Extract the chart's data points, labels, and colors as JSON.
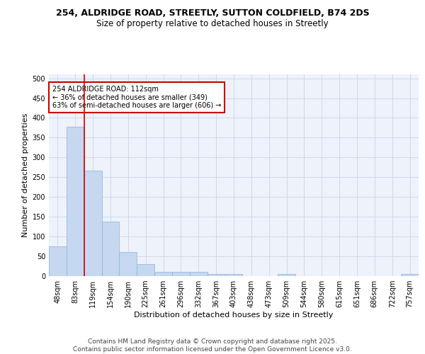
{
  "title_line1": "254, ALDRIDGE ROAD, STREETLY, SUTTON COLDFIELD, B74 2DS",
  "title_line2": "Size of property relative to detached houses in Streetly",
  "xlabel": "Distribution of detached houses by size in Streetly",
  "ylabel": "Number of detached properties",
  "categories": [
    "48sqm",
    "83sqm",
    "119sqm",
    "154sqm",
    "190sqm",
    "225sqm",
    "261sqm",
    "296sqm",
    "332sqm",
    "367sqm",
    "403sqm",
    "438sqm",
    "473sqm",
    "509sqm",
    "544sqm",
    "580sqm",
    "615sqm",
    "651sqm",
    "686sqm",
    "722sqm",
    "757sqm"
  ],
  "values": [
    75,
    378,
    267,
    137,
    60,
    30,
    10,
    10,
    10,
    5,
    5,
    0,
    0,
    5,
    0,
    0,
    0,
    0,
    0,
    0,
    5
  ],
  "bar_color": "#c5d8f0",
  "bar_edge_color": "#8ab4d8",
  "background_color": "#eef2fa",
  "grid_color": "#d0d8ea",
  "vline_x_index": 2,
  "vline_color": "#cc0000",
  "annotation_text": "254 ALDRIDGE ROAD: 112sqm\n← 36% of detached houses are smaller (349)\n63% of semi-detached houses are larger (606) →",
  "annotation_box_color": "#cc0000",
  "annotation_text_color": "#000000",
  "ylim": [
    0,
    510
  ],
  "yticks": [
    0,
    50,
    100,
    150,
    200,
    250,
    300,
    350,
    400,
    450,
    500
  ],
  "footer_text": "Contains HM Land Registry data © Crown copyright and database right 2025.\nContains public sector information licensed under the Open Government Licence v3.0.",
  "title_fontsize": 9,
  "subtitle_fontsize": 8.5,
  "axis_label_fontsize": 8,
  "tick_fontsize": 7,
  "annotation_fontsize": 7,
  "footer_fontsize": 6.5
}
